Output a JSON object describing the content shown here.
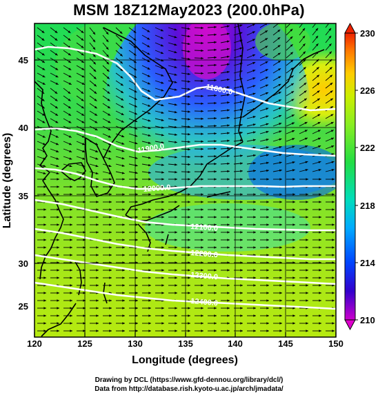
{
  "title": "MSM 18Z12May2023 (200.0hPa)",
  "x_axis": {
    "label": "Longitude (degrees)",
    "ticks": [
      "120",
      "125",
      "130",
      "135",
      "140",
      "145",
      "150"
    ]
  },
  "y_axis": {
    "label": "Latitude  (degrees)",
    "ticks": [
      "45",
      "40",
      "35",
      "30",
      "25"
    ]
  },
  "colorbar": {
    "ticks": [
      "230",
      "226",
      "222",
      "218",
      "214",
      "210"
    ],
    "colors": [
      "#cc00cc",
      "#3300cc",
      "#0044ff",
      "#00aaff",
      "#00ddbb",
      "#22dd44",
      "#88ee22",
      "#ccee00",
      "#ffcc00",
      "#ff7700",
      "#ee2200"
    ]
  },
  "contours": [
    {
      "label": "11600.0"
    },
    {
      "label": "11900.0"
    },
    {
      "label": "12000.0"
    },
    {
      "label": "12100.0"
    },
    {
      "label": "12200.0"
    },
    {
      "label": "12300.0"
    },
    {
      "label": "12400.0"
    }
  ],
  "credits": {
    "line1": "Drawing by DCL (https://www.gfd-dennou.org/library/dcl/)",
    "line2": "Data from http://database.rish.kyoto-u.ac.jp/arch/jmadata/"
  }
}
